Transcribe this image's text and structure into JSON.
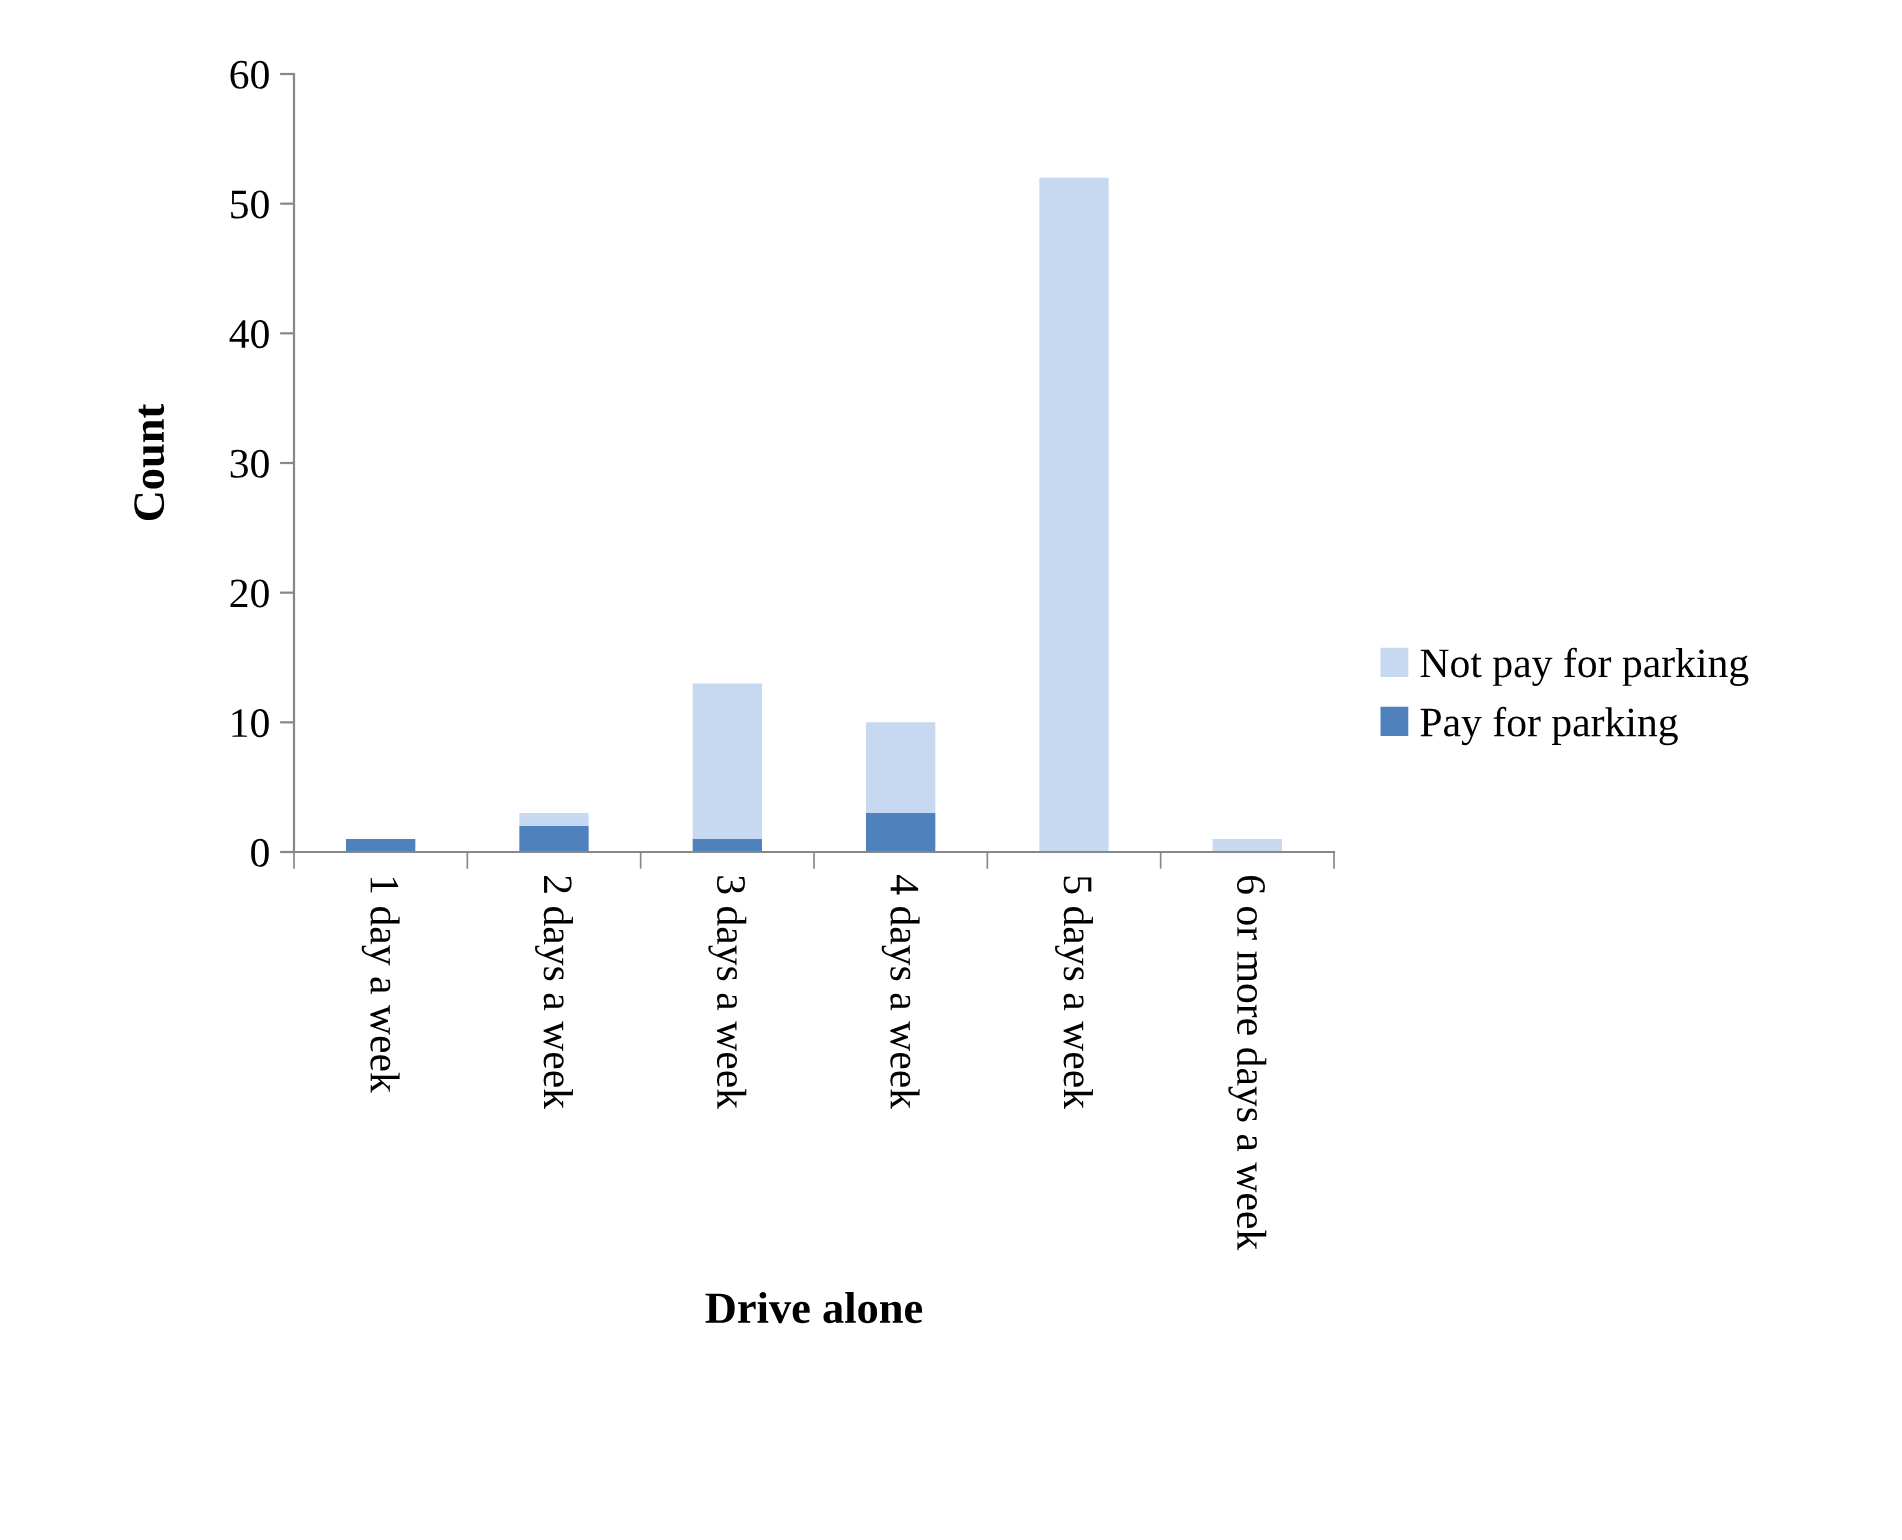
{
  "chart_data": {
    "type": "bar",
    "stacked": true,
    "xlabel": "Drive alone",
    "ylabel": "Count",
    "categories": [
      "1 day a week",
      "2 days a week",
      "3 days a week",
      "4 days a week",
      "5 days a week",
      "6 or more days a week"
    ],
    "series": [
      {
        "name": "Pay for parking",
        "color": "#4f81bd",
        "values": [
          1,
          2,
          1,
          3,
          0,
          0
        ]
      },
      {
        "name": "Not pay for parking",
        "color": "#c6d9f0",
        "values": [
          0,
          1,
          12,
          7,
          52,
          1
        ]
      }
    ],
    "ylim": [
      0,
      60
    ],
    "yticks": [
      0,
      10,
      20,
      30,
      40,
      50,
      60
    ],
    "grid": false,
    "legend": "right"
  }
}
